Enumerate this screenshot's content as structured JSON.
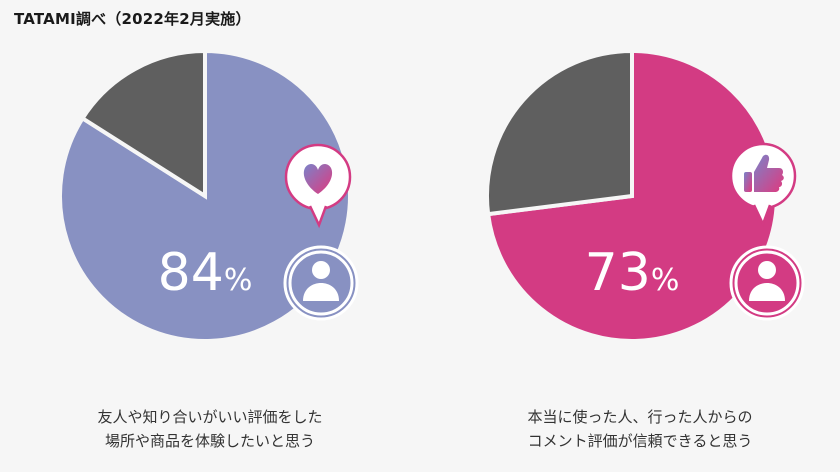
{
  "source": "TATAMI調べ（2022年2月実施）",
  "colors": {
    "background": "#f6f6f6",
    "remainder": "#5f5f5f",
    "chart1": "#8891c2",
    "chart2": "#d33b83",
    "icon_gradient_start": "#7b82c9",
    "icon_gradient_end": "#e0397e"
  },
  "chart_data": [
    {
      "type": "pie",
      "values": [
        84,
        16
      ],
      "value_label": "84",
      "unit": "%",
      "icon": "heart-icon",
      "caption": [
        "友人や知り合いがいい評価をした",
        "場所や商品を体験したいと思う"
      ]
    },
    {
      "type": "pie",
      "values": [
        73,
        27
      ],
      "value_label": "73",
      "unit": "%",
      "icon": "thumbs-up-icon",
      "caption": [
        "本当に使った人、行った人からの",
        "コメント評価が信頼できると思う"
      ]
    }
  ]
}
